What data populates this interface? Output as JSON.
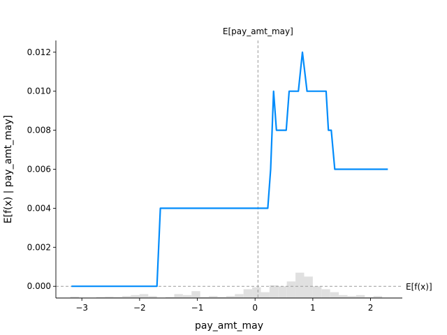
{
  "chart_data": {
    "type": "line",
    "xlabel": "pay_amt_may",
    "ylabel": "E[f(x) | pay_amt_may]",
    "xlim": [
      -3.45,
      2.55
    ],
    "ylim": [
      -0.0006,
      0.0126
    ],
    "x_ticks": [
      -3,
      -2,
      -1,
      0,
      1,
      2
    ],
    "x_tick_labels": [
      "−3",
      "−2",
      "−1",
      "0",
      "1",
      "2"
    ],
    "y_ticks": [
      0.0,
      0.002,
      0.004,
      0.006,
      0.008,
      0.01,
      0.012
    ],
    "y_tick_labels": [
      "0.000",
      "0.002",
      "0.004",
      "0.006",
      "0.008",
      "0.010",
      "0.012"
    ],
    "grid": false,
    "line_color": "#008bfb",
    "hist_color": "#e0e0e0",
    "ref_line_color": "#999999",
    "series": [
      {
        "x": [
          -3.18,
          -1.7,
          -1.64,
          0.22,
          0.27,
          0.32,
          0.37,
          0.54,
          0.59,
          0.75,
          0.82,
          0.9,
          1.23,
          1.27,
          1.32,
          1.38,
          2.3
        ],
        "values": [
          0.0,
          0.0,
          0.004,
          0.004,
          0.006,
          0.01,
          0.008,
          0.008,
          0.01,
          0.01,
          0.012,
          0.01,
          0.01,
          0.008,
          0.008,
          0.006,
          0.006
        ]
      }
    ],
    "histogram": {
      "bin_edges": [
        -3.2,
        -3.05,
        -2.9,
        -2.75,
        -2.6,
        -2.45,
        -2.3,
        -2.15,
        -2.0,
        -1.85,
        -1.7,
        -1.55,
        -1.4,
        -1.25,
        -1.1,
        -0.95,
        -0.8,
        -0.65,
        -0.5,
        -0.35,
        -0.2,
        -0.05,
        0.1,
        0.25,
        0.4,
        0.55,
        0.7,
        0.85,
        1.0,
        1.15,
        1.3,
        1.45,
        1.6,
        1.75,
        1.9,
        2.05,
        2.2
      ],
      "heights": [
        7e-05,
        2e-05,
        2e-05,
        5e-05,
        7e-05,
        5e-05,
        0.0001,
        0.00015,
        0.0002,
        0.0001,
        2e-05,
        5e-05,
        0.0002,
        0.00015,
        0.00035,
        5e-05,
        0.0001,
        5e-05,
        0.0001,
        0.0002,
        0.00045,
        0.00055,
        0.0003,
        0.00065,
        0.0006,
        0.00085,
        0.0013,
        0.0011,
        0.0006,
        0.00045,
        0.0003,
        0.00015,
        0.0001,
        0.00015,
        5e-05,
        0.0001
      ]
    },
    "expected_value_x": 0.05,
    "expected_value_y": 0.0,
    "annotations": {
      "top_label": "E[pay_amt_may]",
      "right_label": "E[f(x)]"
    }
  }
}
